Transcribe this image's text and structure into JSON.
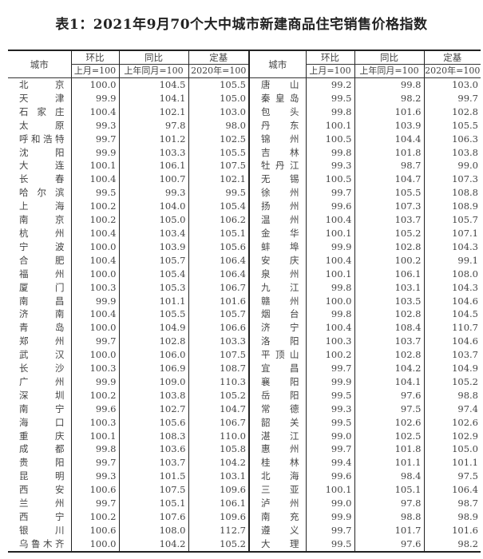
{
  "title": "表1：2021年9月70个大中城市新建商品住宅销售价格指数",
  "headers": {
    "city": "城市",
    "mom": "环比",
    "yoy": "同比",
    "base": "定基",
    "mom_sub": "上月=100",
    "yoy_sub": "上年同月=100",
    "base_sub": "2020年=100"
  },
  "rows": [
    {
      "left": {
        "city": "北京",
        "mom": "100.0",
        "yoy": "104.5",
        "base": "105.5"
      },
      "right": {
        "city": "唐山",
        "mom": "99.2",
        "yoy": "99.8",
        "base": "103.0"
      }
    },
    {
      "left": {
        "city": "天津",
        "mom": "99.9",
        "yoy": "104.1",
        "base": "105.0"
      },
      "right": {
        "city": "秦皇岛",
        "mom": "99.5",
        "yoy": "98.2",
        "base": "99.7"
      }
    },
    {
      "left": {
        "city": "石家庄",
        "mom": "100.4",
        "yoy": "102.1",
        "base": "103.0"
      },
      "right": {
        "city": "包头",
        "mom": "99.8",
        "yoy": "101.6",
        "base": "102.8"
      }
    },
    {
      "left": {
        "city": "太原",
        "mom": "99.3",
        "yoy": "97.8",
        "base": "98.0"
      },
      "right": {
        "city": "丹东",
        "mom": "100.1",
        "yoy": "103.9",
        "base": "105.5"
      }
    },
    {
      "left": {
        "city": "呼和浩特",
        "mom": "99.7",
        "yoy": "101.2",
        "base": "102.5"
      },
      "right": {
        "city": "锦州",
        "mom": "100.5",
        "yoy": "104.4",
        "base": "106.3"
      }
    },
    {
      "left": {
        "city": "沈阳",
        "mom": "99.9",
        "yoy": "103.3",
        "base": "105.5"
      },
      "right": {
        "city": "吉林",
        "mom": "99.8",
        "yoy": "101.8",
        "base": "103.8"
      }
    },
    {
      "left": {
        "city": "大连",
        "mom": "100.1",
        "yoy": "106.1",
        "base": "107.5"
      },
      "right": {
        "city": "牡丹江",
        "mom": "99.3",
        "yoy": "98.7",
        "base": "99.0"
      }
    },
    {
      "left": {
        "city": "长春",
        "mom": "100.4",
        "yoy": "100.7",
        "base": "102.1"
      },
      "right": {
        "city": "无锡",
        "mom": "100.5",
        "yoy": "104.7",
        "base": "107.3"
      }
    },
    {
      "left": {
        "city": "哈尔滨",
        "mom": "99.5",
        "yoy": "99.3",
        "base": "99.5"
      },
      "right": {
        "city": "徐州",
        "mom": "99.7",
        "yoy": "105.5",
        "base": "108.8"
      }
    },
    {
      "left": {
        "city": "上海",
        "mom": "100.2",
        "yoy": "104.0",
        "base": "105.4"
      },
      "right": {
        "city": "扬州",
        "mom": "99.6",
        "yoy": "107.3",
        "base": "108.9"
      }
    },
    {
      "left": {
        "city": "南京",
        "mom": "100.2",
        "yoy": "105.0",
        "base": "106.2"
      },
      "right": {
        "city": "温州",
        "mom": "100.4",
        "yoy": "103.7",
        "base": "105.7"
      }
    },
    {
      "left": {
        "city": "杭州",
        "mom": "100.4",
        "yoy": "103.4",
        "base": "105.1"
      },
      "right": {
        "city": "金华",
        "mom": "100.1",
        "yoy": "105.2",
        "base": "107.1"
      }
    },
    {
      "left": {
        "city": "宁波",
        "mom": "100.0",
        "yoy": "103.9",
        "base": "105.6"
      },
      "right": {
        "city": "蚌埠",
        "mom": "99.9",
        "yoy": "102.8",
        "base": "104.3"
      }
    },
    {
      "left": {
        "city": "合肥",
        "mom": "100.4",
        "yoy": "105.7",
        "base": "106.4"
      },
      "right": {
        "city": "安庆",
        "mom": "100.4",
        "yoy": "100.2",
        "base": "99.1"
      }
    },
    {
      "left": {
        "city": "福州",
        "mom": "100.0",
        "yoy": "105.4",
        "base": "106.4"
      },
      "right": {
        "city": "泉州",
        "mom": "100.1",
        "yoy": "106.1",
        "base": "108.0"
      }
    },
    {
      "left": {
        "city": "厦门",
        "mom": "100.3",
        "yoy": "105.3",
        "base": "106.7"
      },
      "right": {
        "city": "九江",
        "mom": "99.8",
        "yoy": "103.1",
        "base": "104.3"
      }
    },
    {
      "left": {
        "city": "南昌",
        "mom": "99.9",
        "yoy": "101.1",
        "base": "101.6"
      },
      "right": {
        "city": "赣州",
        "mom": "100.0",
        "yoy": "103.5",
        "base": "104.6"
      }
    },
    {
      "left": {
        "city": "济南",
        "mom": "100.4",
        "yoy": "105.5",
        "base": "105.7"
      },
      "right": {
        "city": "烟台",
        "mom": "99.8",
        "yoy": "102.8",
        "base": "104.5"
      }
    },
    {
      "left": {
        "city": "青岛",
        "mom": "100.0",
        "yoy": "104.9",
        "base": "106.6"
      },
      "right": {
        "city": "济宁",
        "mom": "100.4",
        "yoy": "108.4",
        "base": "110.7"
      }
    },
    {
      "left": {
        "city": "郑州",
        "mom": "99.7",
        "yoy": "102.8",
        "base": "103.3"
      },
      "right": {
        "city": "洛阳",
        "mom": "100.3",
        "yoy": "103.7",
        "base": "104.6"
      }
    },
    {
      "left": {
        "city": "武汉",
        "mom": "100.0",
        "yoy": "106.0",
        "base": "107.5"
      },
      "right": {
        "city": "平顶山",
        "mom": "100.2",
        "yoy": "102.8",
        "base": "103.7"
      }
    },
    {
      "left": {
        "city": "长沙",
        "mom": "100.3",
        "yoy": "106.9",
        "base": "108.7"
      },
      "right": {
        "city": "宜昌",
        "mom": "99.7",
        "yoy": "104.2",
        "base": "104.9"
      }
    },
    {
      "left": {
        "city": "广州",
        "mom": "99.9",
        "yoy": "109.0",
        "base": "110.3"
      },
      "right": {
        "city": "襄阳",
        "mom": "99.9",
        "yoy": "104.1",
        "base": "105.2"
      }
    },
    {
      "left": {
        "city": "深圳",
        "mom": "100.2",
        "yoy": "103.8",
        "base": "105.2"
      },
      "right": {
        "city": "岳阳",
        "mom": "99.5",
        "yoy": "97.6",
        "base": "98.8"
      }
    },
    {
      "left": {
        "city": "南宁",
        "mom": "99.6",
        "yoy": "102.7",
        "base": "104.7"
      },
      "right": {
        "city": "常德",
        "mom": "99.3",
        "yoy": "97.5",
        "base": "97.4"
      }
    },
    {
      "left": {
        "city": "海口",
        "mom": "100.3",
        "yoy": "105.6",
        "base": "106.7"
      },
      "right": {
        "city": "韶关",
        "mom": "99.5",
        "yoy": "102.6",
        "base": "102.6"
      }
    },
    {
      "left": {
        "city": "重庆",
        "mom": "100.1",
        "yoy": "108.3",
        "base": "110.0"
      },
      "right": {
        "city": "湛江",
        "mom": "99.0",
        "yoy": "102.5",
        "base": "102.9"
      }
    },
    {
      "left": {
        "city": "成都",
        "mom": "99.8",
        "yoy": "103.6",
        "base": "105.8"
      },
      "right": {
        "city": "惠州",
        "mom": "99.7",
        "yoy": "101.8",
        "base": "105.0"
      }
    },
    {
      "left": {
        "city": "贵阳",
        "mom": "99.7",
        "yoy": "103.7",
        "base": "104.2"
      },
      "right": {
        "city": "桂林",
        "mom": "99.4",
        "yoy": "101.1",
        "base": "101.1"
      }
    },
    {
      "left": {
        "city": "昆明",
        "mom": "99.3",
        "yoy": "101.5",
        "base": "103.1"
      },
      "right": {
        "city": "北海",
        "mom": "99.6",
        "yoy": "98.4",
        "base": "97.5"
      }
    },
    {
      "left": {
        "city": "西安",
        "mom": "100.6",
        "yoy": "107.5",
        "base": "109.6"
      },
      "right": {
        "city": "三亚",
        "mom": "100.1",
        "yoy": "105.1",
        "base": "106.4"
      }
    },
    {
      "left": {
        "city": "兰州",
        "mom": "99.7",
        "yoy": "105.1",
        "base": "106.1"
      },
      "right": {
        "city": "泸州",
        "mom": "99.0",
        "yoy": "97.8",
        "base": "98.7"
      }
    },
    {
      "left": {
        "city": "西宁",
        "mom": "100.2",
        "yoy": "107.6",
        "base": "109.6"
      },
      "right": {
        "city": "南充",
        "mom": "99.9",
        "yoy": "98.8",
        "base": "98.9"
      }
    },
    {
      "left": {
        "city": "银川",
        "mom": "100.6",
        "yoy": "108.0",
        "base": "112.7"
      },
      "right": {
        "city": "遵义",
        "mom": "99.7",
        "yoy": "101.7",
        "base": "101.6"
      }
    },
    {
      "left": {
        "city": "乌鲁木齐",
        "mom": "100.0",
        "yoy": "104.2",
        "base": "105.2"
      },
      "right": {
        "city": "大理",
        "mom": "99.5",
        "yoy": "97.6",
        "base": "98.2"
      }
    }
  ]
}
